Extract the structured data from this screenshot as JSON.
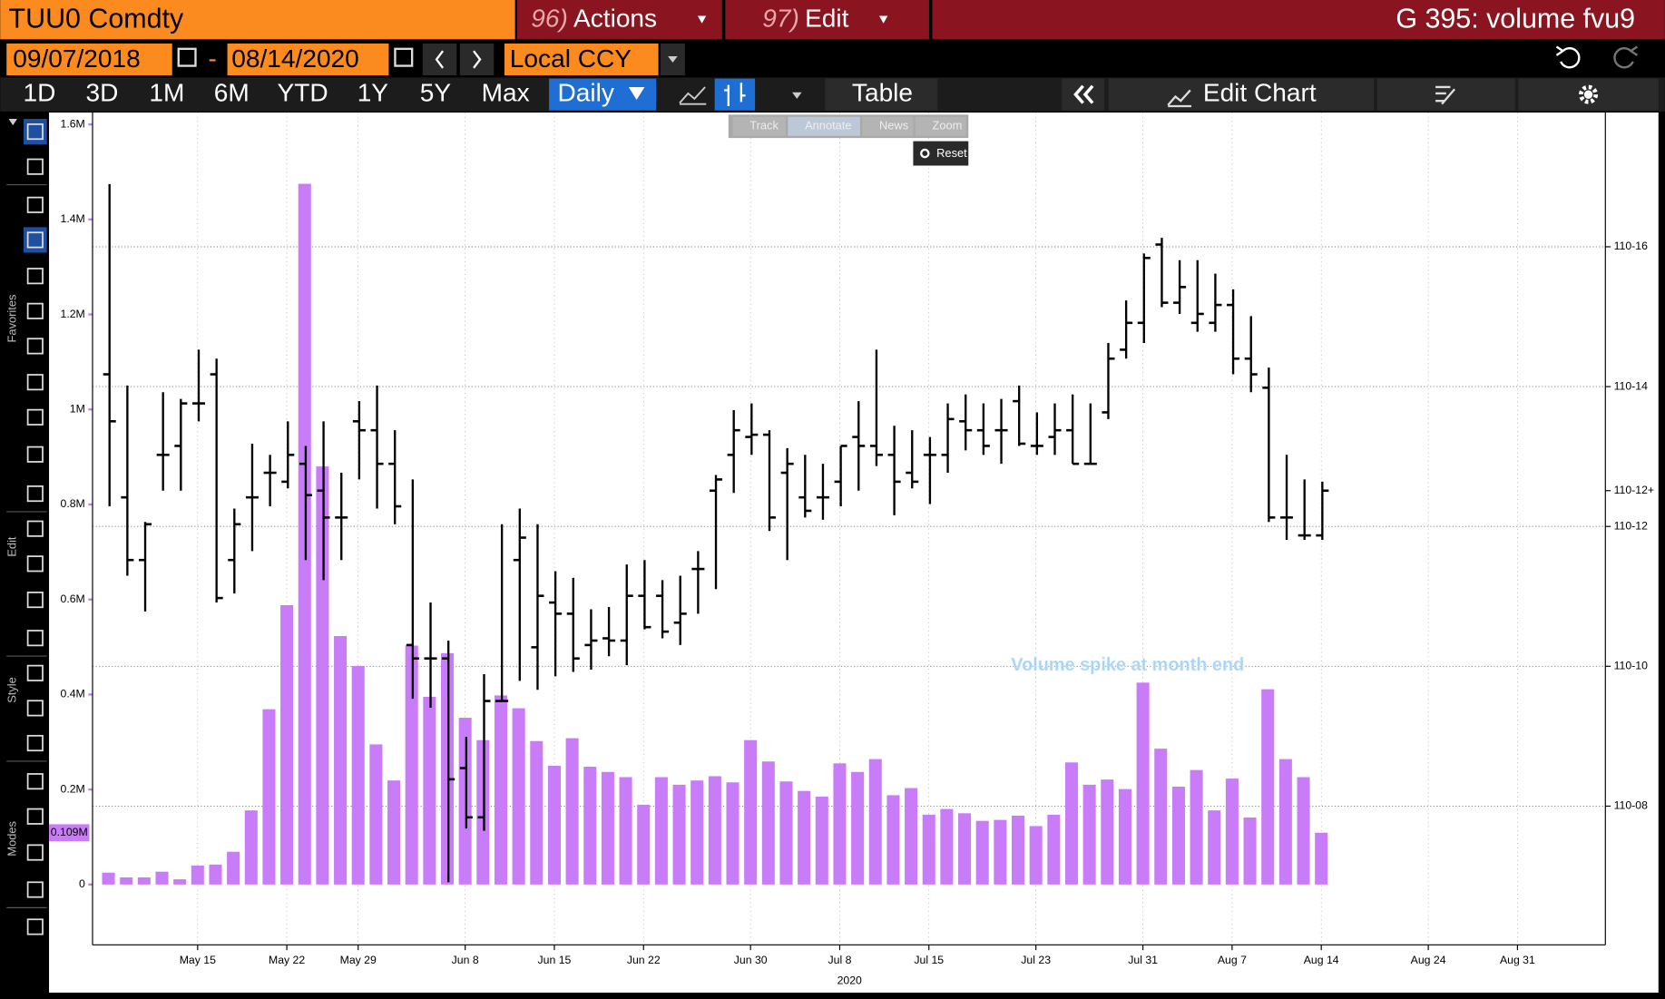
{
  "header": {
    "ticker": "TUU0 Comdty",
    "menus": [
      {
        "num": "96)",
        "label": "Actions"
      },
      {
        "num": "97)",
        "label": "Edit"
      }
    ],
    "chart_name": "G 395: volume fvu9"
  },
  "range": {
    "start": "09/07/2018",
    "separator": "-",
    "end": "08/14/2020",
    "currency": "Local CCY"
  },
  "toolbar": {
    "periods": [
      "1D",
      "3D",
      "1M",
      "6M",
      "YTD",
      "1Y",
      "5Y",
      "Max"
    ],
    "frequency": "Daily",
    "table": "Table",
    "edit_chart": "Edit Chart"
  },
  "overlay": {
    "tools": [
      "Track",
      "Annotate",
      "News",
      "Zoom"
    ],
    "reset": "Reset"
  },
  "sidebar": {
    "sections": [
      "Favorites",
      "Edit",
      "Style",
      "Modes"
    ]
  },
  "chart_data": {
    "type": "ohlc",
    "categories": [
      "2020-05-08",
      "2020-05-11",
      "2020-05-12",
      "2020-05-13",
      "2020-05-14",
      "2020-05-15",
      "2020-05-18",
      "2020-05-19",
      "2020-05-20",
      "2020-05-21",
      "2020-05-22",
      "2020-05-26",
      "2020-05-27",
      "2020-05-28",
      "2020-05-29",
      "2020-06-01",
      "2020-06-02",
      "2020-06-03",
      "2020-06-04",
      "2020-06-05",
      "2020-06-08",
      "2020-06-09",
      "2020-06-10",
      "2020-06-11",
      "2020-06-12",
      "2020-06-15",
      "2020-06-16",
      "2020-06-17",
      "2020-06-18",
      "2020-06-19",
      "2020-06-22",
      "2020-06-23",
      "2020-06-24",
      "2020-06-25",
      "2020-06-26",
      "2020-06-29",
      "2020-06-30",
      "2020-07-01",
      "2020-07-02",
      "2020-07-06",
      "2020-07-07",
      "2020-07-08",
      "2020-07-09",
      "2020-07-10",
      "2020-07-13",
      "2020-07-14",
      "2020-07-15",
      "2020-07-16",
      "2020-07-17",
      "2020-07-20",
      "2020-07-21",
      "2020-07-22",
      "2020-07-23",
      "2020-07-24",
      "2020-07-27",
      "2020-07-28",
      "2020-07-29",
      "2020-07-30",
      "2020-07-31",
      "2020-08-03",
      "2020-08-04",
      "2020-08-05",
      "2020-08-06",
      "2020-08-07",
      "2020-08-10",
      "2020-08-11",
      "2020-08-12",
      "2020-08-13",
      "2020-08-14"
    ],
    "xticks": [
      {
        "value": "2020-05-15",
        "label": "May 15"
      },
      {
        "value": "2020-05-22",
        "label": "May 22"
      },
      {
        "value": "2020-05-29",
        "label": "May 29"
      },
      {
        "value": "2020-06-08",
        "label": "Jun 8"
      },
      {
        "value": "2020-06-15",
        "label": "Jun 15"
      },
      {
        "value": "2020-06-22",
        "label": "Jun 22"
      },
      {
        "value": "2020-06-30",
        "label": "Jun 30"
      },
      {
        "value": "2020-07-08",
        "label": "Jul 8"
      },
      {
        "value": "2020-07-15",
        "label": "Jul 15"
      },
      {
        "value": "2020-07-23",
        "label": "Jul 23"
      },
      {
        "value": "2020-07-31",
        "label": "Jul 31"
      },
      {
        "value": "2020-08-07",
        "label": "Aug 7"
      },
      {
        "value": "2020-08-14",
        "label": "Aug 14"
      },
      {
        "value": "2020-08-24",
        "label": "Aug 24"
      },
      {
        "value": "2020-08-31",
        "label": "Aug 31"
      }
    ],
    "x_year_label": "2020",
    "volume": {
      "color": "#c97cf7",
      "values": [
        25000,
        15000,
        15000,
        27000,
        11000,
        40000,
        42000,
        69000,
        156000,
        369000,
        588000,
        1475000,
        880000,
        523000,
        460000,
        295000,
        219000,
        503000,
        395000,
        487000,
        351000,
        304000,
        398000,
        371000,
        302000,
        250000,
        308000,
        248000,
        237000,
        226000,
        168000,
        226000,
        210000,
        219000,
        228000,
        215000,
        304000,
        259000,
        217000,
        197000,
        185000,
        255000,
        237000,
        264000,
        188000,
        203000,
        147000,
        159000,
        150000,
        134000,
        136000,
        145000,
        123000,
        147000,
        257000,
        210000,
        221000,
        201000,
        425000,
        286000,
        206000,
        241000,
        156000,
        223000,
        141000,
        411000,
        264000,
        226000,
        109000
      ],
      "value_labels": [
        null,
        null,
        null,
        null,
        null,
        null,
        null,
        null,
        null,
        null,
        null,
        null,
        null,
        null,
        null,
        null,
        null,
        null,
        null,
        null,
        null,
        null,
        null,
        null,
        null,
        null,
        null,
        null,
        null,
        null,
        null,
        null,
        null,
        null,
        null,
        null,
        null,
        null,
        null,
        null,
        null,
        null,
        null,
        null,
        null,
        null,
        null,
        null,
        null,
        null,
        null,
        null,
        null,
        null,
        null,
        null,
        null,
        null,
        null,
        null,
        null,
        null,
        null,
        null,
        null,
        null,
        null,
        null,
        "0.109M"
      ]
    },
    "price": {
      "axis": "y2",
      "color": "#000000",
      "open": [
        110.443,
        110.388,
        110.36,
        110.407,
        110.411,
        110.43,
        110.443,
        110.36,
        110.388,
        110.399,
        110.395,
        110.403,
        110.391,
        110.379,
        110.422,
        110.418,
        110.403,
        110.322,
        110.316,
        110.316,
        110.267,
        110.245,
        110.297,
        110.36,
        110.321,
        110.341,
        110.336,
        110.322,
        110.325,
        110.324,
        110.344,
        110.344,
        110.332,
        110.356,
        110.391,
        110.407,
        110.415,
        110.416,
        110.399,
        110.388,
        110.388,
        110.395,
        110.415,
        110.411,
        110.407,
        110.399,
        110.407,
        110.407,
        110.422,
        110.418,
        110.418,
        110.431,
        110.411,
        110.415,
        110.418,
        110.403,
        110.426,
        110.454,
        110.466,
        110.501,
        110.475,
        110.466,
        110.466,
        110.474,
        110.45,
        110.437,
        110.379,
        110.371,
        110.371
      ],
      "high": [
        110.528,
        110.438,
        110.377,
        110.435,
        110.432,
        110.454,
        110.45,
        110.383,
        110.412,
        110.407,
        110.422,
        110.411,
        110.422,
        110.399,
        110.431,
        110.438,
        110.418,
        110.396,
        110.341,
        110.324,
        110.281,
        110.309,
        110.376,
        110.383,
        110.376,
        110.355,
        110.352,
        110.338,
        110.339,
        110.358,
        110.36,
        110.351,
        110.353,
        110.364,
        110.398,
        110.427,
        110.43,
        110.418,
        110.41,
        110.407,
        110.403,
        110.411,
        110.431,
        110.454,
        110.42,
        110.418,
        110.415,
        110.43,
        110.434,
        110.43,
        110.432,
        110.438,
        110.426,
        110.43,
        110.434,
        110.43,
        110.457,
        110.476,
        110.497,
        110.504,
        110.494,
        110.494,
        110.488,
        110.481,
        110.469,
        110.446,
        110.407,
        110.396,
        110.395
      ],
      "low": [
        110.384,
        110.353,
        110.337,
        110.391,
        110.391,
        110.422,
        110.341,
        110.345,
        110.364,
        110.384,
        110.392,
        110.36,
        110.351,
        110.36,
        110.396,
        110.383,
        110.376,
        110.298,
        110.294,
        110.216,
        110.24,
        110.239,
        110.297,
        110.306,
        110.302,
        110.308,
        110.31,
        110.311,
        110.317,
        110.313,
        110.329,
        110.325,
        110.322,
        110.336,
        110.347,
        110.39,
        110.407,
        110.373,
        110.36,
        110.379,
        110.378,
        110.384,
        110.391,
        110.402,
        110.38,
        110.392,
        110.385,
        110.399,
        110.409,
        110.407,
        110.403,
        110.411,
        110.407,
        110.407,
        110.403,
        110.403,
        110.423,
        110.45,
        110.457,
        110.473,
        110.47,
        110.462,
        110.462,
        110.443,
        110.435,
        110.377,
        110.369,
        110.369,
        110.369
      ],
      "close": [
        110.422,
        110.36,
        110.376,
        110.407,
        110.43,
        110.43,
        110.343,
        110.376,
        110.388,
        110.399,
        110.407,
        110.389,
        110.379,
        110.379,
        110.418,
        110.403,
        110.384,
        110.316,
        110.316,
        110.262,
        110.245,
        110.297,
        110.297,
        110.37,
        110.344,
        110.336,
        110.316,
        110.324,
        110.324,
        110.344,
        110.33,
        110.328,
        110.336,
        110.356,
        110.396,
        110.418,
        110.416,
        110.379,
        110.403,
        110.382,
        110.388,
        110.411,
        110.411,
        110.407,
        110.395,
        110.395,
        110.407,
        110.423,
        110.418,
        110.411,
        110.418,
        110.412,
        110.411,
        110.418,
        110.403,
        110.403,
        110.45,
        110.466,
        110.495,
        110.475,
        110.482,
        110.47,
        110.474,
        110.45,
        110.443,
        110.379,
        110.379,
        110.371,
        110.391
      ],
      "value_labels": [
        null,
        null,
        null,
        null,
        null,
        null,
        null,
        null,
        null,
        null,
        null,
        null,
        null,
        null,
        null,
        null,
        null,
        null,
        null,
        null,
        null,
        null,
        null,
        null,
        null,
        null,
        null,
        null,
        null,
        null,
        null,
        null,
        null,
        null,
        null,
        null,
        null,
        null,
        null,
        null,
        null,
        null,
        null,
        null,
        null,
        null,
        null,
        null,
        null,
        null,
        null,
        null,
        null,
        null,
        null,
        null,
        null,
        null,
        null,
        null,
        null,
        null,
        null,
        null,
        null,
        null,
        null,
        null,
        "110-12+"
      ]
    },
    "ylim": [
      -127000,
      1625000
    ],
    "yticks": [
      0,
      {
        "value": 200000,
        "label": "0.2M"
      },
      {
        "value": 400000,
        "label": "0.4M"
      },
      {
        "value": 600000,
        "label": "0.6M"
      },
      {
        "value": 800000,
        "label": "0.8M"
      },
      {
        "value": 1000000,
        "label": "1M"
      },
      {
        "value": 1200000,
        "label": "1.2M"
      },
      {
        "value": 1400000,
        "label": "1.4M"
      },
      {
        "value": 1600000,
        "label": "1.6M"
      }
    ],
    "y2lim": [
      110.188,
      110.56
    ],
    "y2ticks": [
      {
        "value": 110.25,
        "label": "110-08"
      },
      {
        "value": 110.3125,
        "label": "110-10"
      },
      {
        "value": 110.375,
        "label": "110-12"
      },
      {
        "value": 110.4375,
        "label": "110-14"
      },
      {
        "value": 110.5,
        "label": "110-16"
      }
    ],
    "annotation": "Volume spike at month end",
    "grid": true
  }
}
